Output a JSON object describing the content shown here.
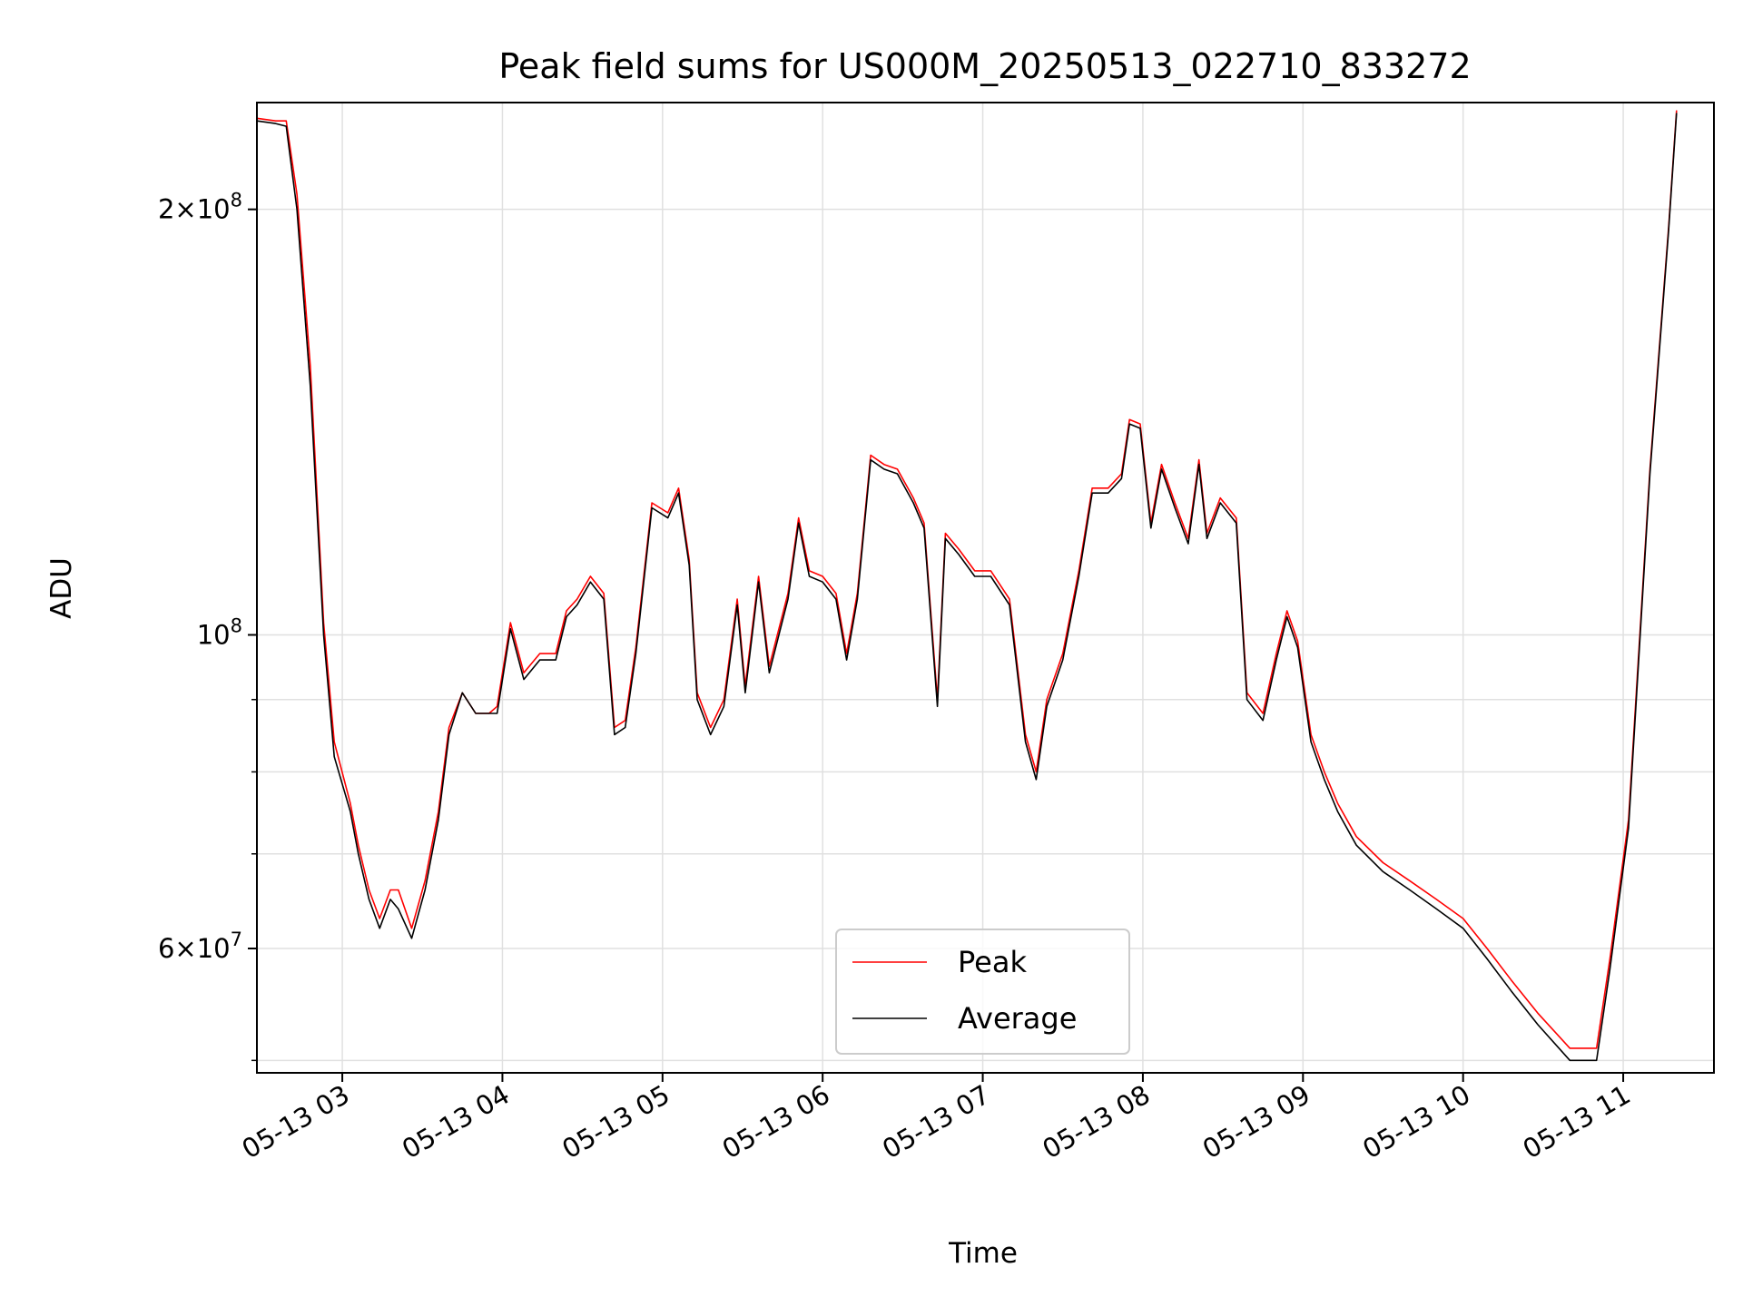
{
  "chart_data": {
    "type": "line",
    "title": "Peak field sums for US000M_20250513_022710_833272",
    "xlabel": "Time",
    "ylabel": "ADU",
    "yscale": "log",
    "ylim": [
      49000000,
      238000000
    ],
    "xlim": [
      "05-13 02:28",
      "05-13 11:34"
    ],
    "grid": true,
    "legend_position": "lower-center",
    "x_ticks": [
      "05-13 03",
      "05-13 04",
      "05-13 05",
      "05-13 06",
      "05-13 07",
      "05-13 08",
      "05-13 09",
      "05-13 10",
      "05-13 11"
    ],
    "y_ticks": [
      {
        "value": 200000000,
        "mantissa": "2",
        "exponent": "8"
      },
      {
        "value": 100000000,
        "mantissa": "",
        "exponent": "8"
      },
      {
        "value": 60000000,
        "mantissa": "6",
        "exponent": "7"
      }
    ],
    "y_minor_ticks": [
      50000000,
      70000000,
      80000000,
      90000000
    ],
    "colors": {
      "Peak": "#ff0000",
      "Average": "#000000",
      "grid": "#e0e0e0"
    },
    "x": [
      "05-13 02:28",
      "05-13 02:35",
      "05-13 02:39",
      "05-13 02:43",
      "05-13 02:48",
      "05-13 02:53",
      "05-13 02:57",
      "05-13 03:03",
      "05-13 03:06",
      "05-13 03:10",
      "05-13 03:14",
      "05-13 03:18",
      "05-13 03:21",
      "05-13 03:26",
      "05-13 03:31",
      "05-13 03:36",
      "05-13 03:40",
      "05-13 03:45",
      "05-13 03:50",
      "05-13 03:55",
      "05-13 03:58",
      "05-13 04:03",
      "05-13 04:08",
      "05-13 04:14",
      "05-13 04:20",
      "05-13 04:24",
      "05-13 04:28",
      "05-13 04:33",
      "05-13 04:38",
      "05-13 04:42",
      "05-13 04:46",
      "05-13 04:50",
      "05-13 04:56",
      "05-13 05:02",
      "05-13 05:06",
      "05-13 05:10",
      "05-13 05:13",
      "05-13 05:18",
      "05-13 05:23",
      "05-13 05:28",
      "05-13 05:31",
      "05-13 05:36",
      "05-13 05:40",
      "05-13 05:47",
      "05-13 05:51",
      "05-13 05:55",
      "05-13 06:00",
      "05-13 06:05",
      "05-13 06:09",
      "05-13 06:13",
      "05-13 06:18",
      "05-13 06:23",
      "05-13 06:28",
      "05-13 06:34",
      "05-13 06:38",
      "05-13 06:43",
      "05-13 06:46",
      "05-13 06:51",
      "05-13 06:57",
      "05-13 07:03",
      "05-13 07:10",
      "05-13 07:16",
      "05-13 07:20",
      "05-13 07:24",
      "05-13 07:30",
      "05-13 07:36",
      "05-13 07:41",
      "05-13 07:47",
      "05-13 07:52",
      "05-13 07:55",
      "05-13 07:59",
      "05-13 08:03",
      "05-13 08:07",
      "05-13 08:12",
      "05-13 08:17",
      "05-13 08:21",
      "05-13 08:24",
      "05-13 08:29",
      "05-13 08:35",
      "05-13 08:39",
      "05-13 08:45",
      "05-13 08:50",
      "05-13 08:54",
      "05-13 08:58",
      "05-13 09:03",
      "05-13 09:08",
      "05-13 09:13",
      "05-13 09:20",
      "05-13 09:30",
      "05-13 09:40",
      "05-13 09:50",
      "05-13 10:00",
      "05-13 10:09",
      "05-13 10:18",
      "05-13 10:28",
      "05-13 10:40",
      "05-13 10:50",
      "05-13 10:55",
      "05-13 11:02",
      "05-13 11:10",
      "05-13 11:17",
      "05-13 11:20"
    ],
    "series": [
      {
        "name": "Peak",
        "values": [
          232000000,
          231000000,
          231000000,
          205000000,
          155000000,
          102000000,
          84000000,
          76000000,
          71000000,
          66000000,
          63000000,
          66000000,
          66000000,
          62000000,
          67000000,
          75000000,
          86000000,
          91000000,
          88000000,
          88000000,
          89000000,
          102000000,
          94000000,
          97000000,
          97000000,
          104000000,
          106000000,
          110000000,
          107000000,
          86000000,
          87000000,
          98000000,
          124000000,
          122000000,
          127000000,
          113000000,
          91000000,
          86000000,
          90000000,
          106000000,
          92000000,
          110000000,
          95000000,
          107000000,
          121000000,
          111000000,
          110000000,
          107000000,
          97000000,
          107000000,
          134000000,
          132000000,
          131000000,
          125000000,
          120000000,
          90000000,
          118000000,
          115000000,
          111000000,
          111000000,
          106000000,
          85000000,
          80000000,
          90000000,
          97000000,
          111000000,
          127000000,
          127000000,
          130000000,
          142000000,
          141000000,
          120000000,
          132000000,
          124000000,
          117000000,
          133000000,
          118000000,
          125000000,
          121000000,
          91000000,
          88000000,
          97000000,
          104000000,
          99000000,
          85000000,
          80000000,
          76000000,
          72000000,
          69000000,
          67000000,
          65000000,
          63000000,
          60000000,
          57000000,
          54000000,
          51000000,
          51000000,
          59000000,
          74000000,
          131000000,
          194000000,
          235000000
        ]
      },
      {
        "name": "Average",
        "values": [
          231000000,
          230000000,
          229000000,
          200000000,
          150000000,
          100000000,
          82000000,
          75000000,
          70000000,
          65000000,
          62000000,
          65000000,
          64000000,
          61000000,
          66000000,
          74000000,
          85000000,
          91000000,
          88000000,
          88000000,
          88000000,
          101000000,
          93000000,
          96000000,
          96000000,
          103000000,
          105000000,
          109000000,
          106000000,
          85000000,
          86000000,
          97000000,
          123000000,
          121000000,
          126000000,
          112000000,
          90000000,
          85000000,
          89000000,
          105000000,
          91000000,
          109000000,
          94000000,
          106000000,
          120000000,
          110000000,
          109000000,
          106000000,
          96000000,
          106000000,
          133000000,
          131000000,
          130000000,
          124000000,
          119000000,
          89000000,
          117000000,
          114000000,
          110000000,
          110000000,
          105000000,
          84000000,
          79000000,
          89000000,
          96000000,
          110000000,
          126000000,
          126000000,
          129000000,
          141000000,
          140000000,
          119000000,
          131000000,
          123000000,
          116000000,
          132000000,
          117000000,
          124000000,
          120000000,
          90000000,
          87000000,
          96000000,
          103000000,
          98000000,
          84000000,
          79000000,
          75000000,
          71000000,
          68000000,
          66000000,
          64000000,
          62000000,
          59000000,
          56000000,
          53000000,
          50000000,
          50000000,
          58000000,
          73000000,
          130000000,
          193000000,
          234000000
        ]
      }
    ]
  }
}
